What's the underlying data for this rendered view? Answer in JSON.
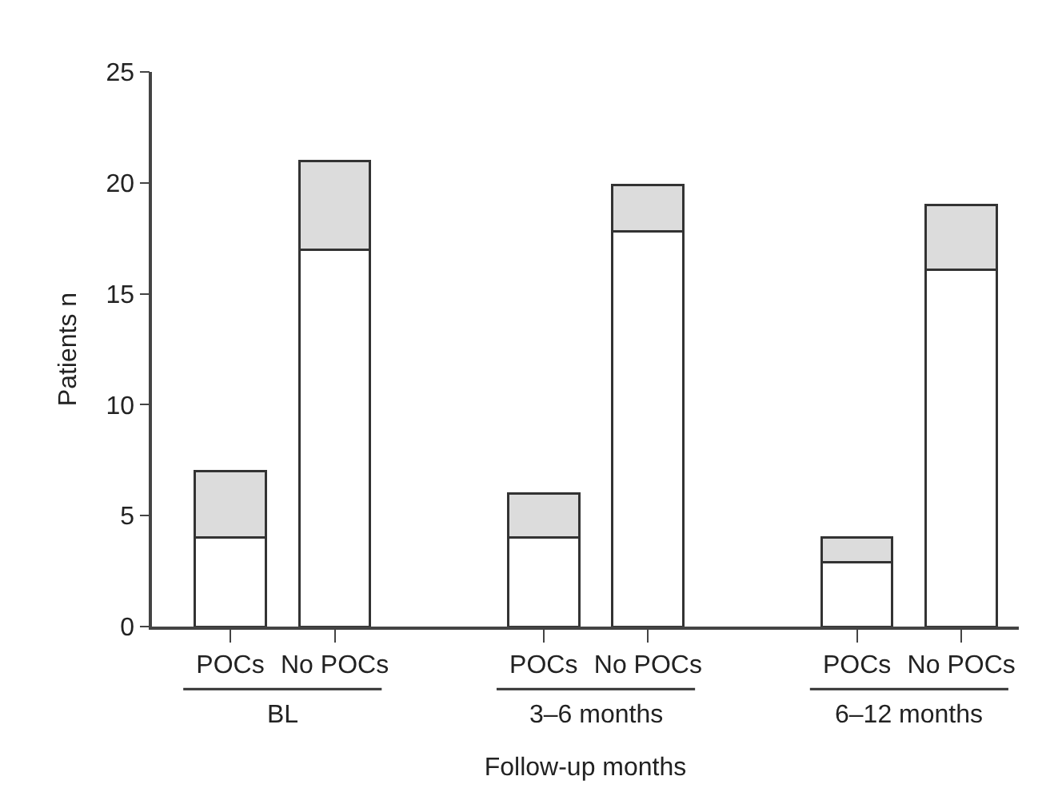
{
  "chart_data": {
    "type": "bar",
    "stacked": true,
    "xlabel": "Follow-up months",
    "ylabel": "Patients n",
    "categories": [
      "POCs",
      "No POCs",
      null,
      "POCs",
      "No POCs",
      null,
      "POCs",
      "No POCs"
    ],
    "series": [
      {
        "color": "#ffffff",
        "values": [
          4,
          17,
          null,
          4,
          17.8,
          null,
          2.9,
          16.1
        ]
      },
      {
        "color": "#dcdcdc",
        "values": [
          3,
          4,
          null,
          2,
          2.1,
          null,
          1.1,
          2.9
        ]
      }
    ],
    "annotations": [
      "BL",
      "3–6 months",
      "6–12 months"
    ],
    "ylim": [
      0,
      25
    ],
    "yticks": [
      0,
      5,
      10,
      15,
      20,
      25
    ]
  }
}
